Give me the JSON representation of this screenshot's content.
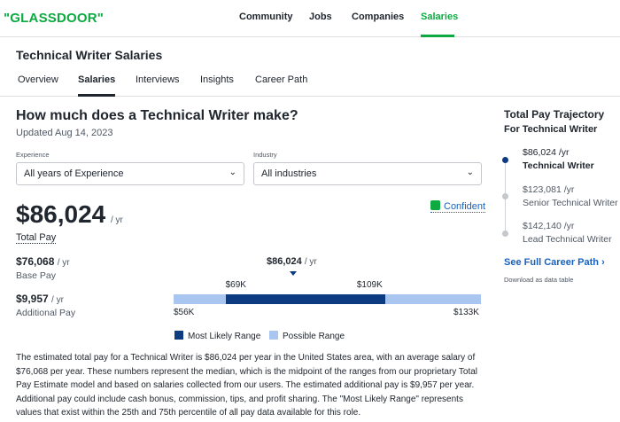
{
  "brand": {
    "logo_text": "\"GLASSDOOR\"",
    "accent": "#0caa41",
    "bar_dark": "#0d3b82",
    "bar_light": "#a8c6f0",
    "link": "#1861bf"
  },
  "nav": {
    "items": [
      "Community",
      "Jobs",
      "Companies",
      "Salaries"
    ],
    "active": "Salaries"
  },
  "page_title": "Technical Writer Salaries",
  "tabs": {
    "items": [
      "Overview",
      "Salaries",
      "Interviews",
      "Insights",
      "Career Path"
    ],
    "active": "Salaries"
  },
  "main": {
    "heading": "How much does a Technical Writer make?",
    "updated": "Updated Aug 14, 2023",
    "experience": {
      "label": "Experience",
      "value": "All years of Experience"
    },
    "industry": {
      "label": "Industry",
      "value": "All industries"
    },
    "total_pay": {
      "value": "$86,024",
      "unit": "/ yr",
      "label": "Total Pay"
    },
    "confidence": "Confident",
    "base_pay": {
      "value": "$76,068",
      "unit": "/ yr",
      "label": "Base Pay"
    },
    "additional_pay": {
      "value": "$9,957",
      "unit": "/ yr",
      "label": "Additional Pay"
    },
    "range": {
      "median_label": "$86,024",
      "median_unit": "/ yr",
      "likely_low_label": "$69K",
      "likely_high_label": "$109K",
      "possible_low_label": "$56K",
      "possible_high_label": "$133K",
      "possible_low": 56000,
      "possible_high": 133000,
      "likely_low": 69000,
      "likely_high": 109000,
      "median": 86024
    },
    "legend": {
      "likely": "Most Likely Range",
      "possible": "Possible Range"
    },
    "description": "The estimated total pay for a Technical Writer is $86,024 per year in the United States area, with an average salary of $76,068 per year. These numbers represent the median, which is the midpoint of the ranges from our proprietary Total Pay Estimate model and based on salaries collected from our users. The estimated additional pay is $9,957 per year. Additional pay could include cash bonus, commission, tips, and profit sharing. The \"Most Likely Range\" represents values that exist within the 25th and 75th percentile of all pay data available for this role."
  },
  "trajectory": {
    "title": "Total Pay Trajectory",
    "subtitle": "For Technical Writer",
    "steps": [
      {
        "pay": "$86,024 /yr",
        "role": "Technical Writer"
      },
      {
        "pay": "$123,081 /yr",
        "role": "Senior Technical Writer"
      },
      {
        "pay": "$142,140 /yr",
        "role": "Lead Technical Writer"
      }
    ],
    "career_link": "See Full Career Path",
    "download": "Download as data table"
  }
}
